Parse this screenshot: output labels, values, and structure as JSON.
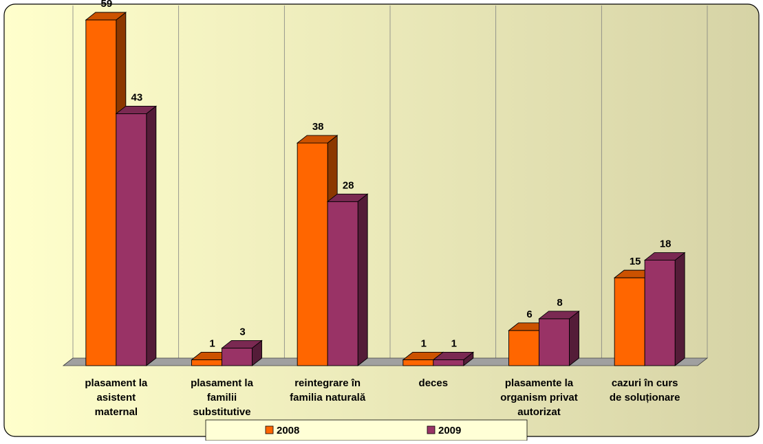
{
  "chart_data": {
    "type": "bar",
    "style": "3d-clustered-column",
    "categories": [
      [
        "plasament la",
        "asistent",
        "maternal"
      ],
      [
        "plasament la",
        "familii",
        "substitutive"
      ],
      [
        "reintegrare în",
        "familia naturală"
      ],
      [
        "deces"
      ],
      [
        "plasamente la",
        "organism privat",
        "autorizat"
      ],
      [
        "cazuri în curs",
        "de soluționare"
      ]
    ],
    "series": [
      {
        "name": "2008",
        "color": "#FF6600",
        "values": [
          59,
          1,
          38,
          1,
          6,
          15
        ]
      },
      {
        "name": "2009",
        "color": "#993366",
        "values": [
          43,
          3,
          28,
          1,
          8,
          18
        ]
      }
    ],
    "ylim": [
      0,
      59
    ],
    "grid": true,
    "legend": "bottom",
    "data_labels": true,
    "background_gradient": [
      "#FFFFCC",
      "#D6D3A6"
    ]
  }
}
